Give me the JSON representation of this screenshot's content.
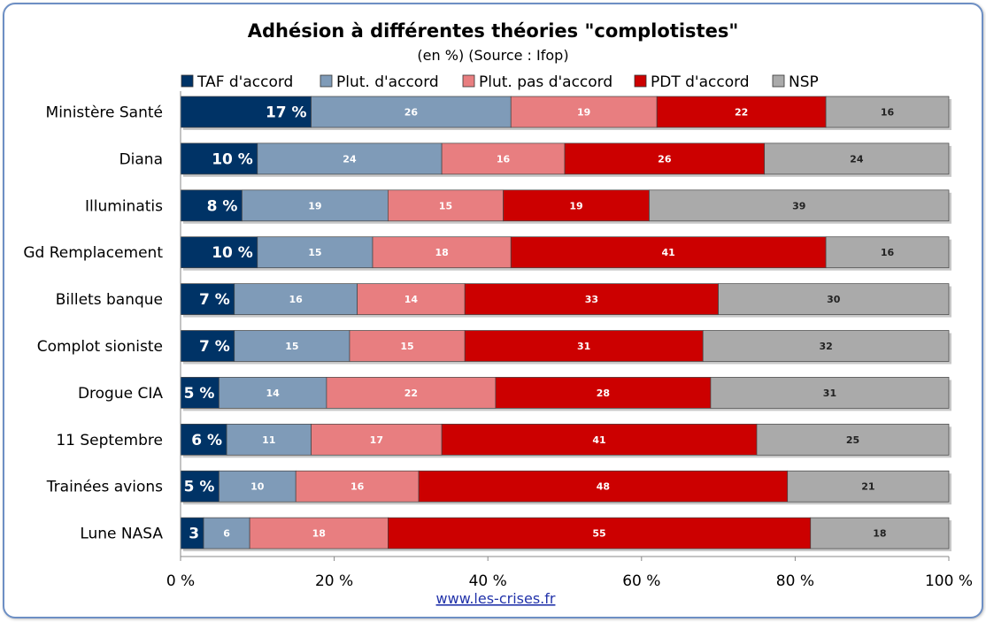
{
  "chart_data": {
    "type": "bar",
    "orientation": "horizontal",
    "stacked": true,
    "title": "Adhésion à différentes théories \"complotistes\"",
    "subtitle": "(en %) (Source : Ifop)",
    "categories": [
      "Ministère Santé",
      "Diana",
      "Illuminatis",
      "Gd Remplacement",
      "Billets banque",
      "Complot sioniste",
      "Drogue CIA",
      "11 Septembre",
      "Trainées avions",
      "Lune NASA"
    ],
    "series": [
      {
        "name": "TAF d'accord",
        "color": "#003366",
        "values": [
          17,
          10,
          8,
          10,
          7,
          7,
          5,
          6,
          5,
          3
        ],
        "labels": [
          "17 %",
          "10 %",
          "8 %",
          "10 %",
          "7 %",
          "7 %",
          "5 %",
          "6 %",
          "5 %",
          "3"
        ]
      },
      {
        "name": "Plut. d'accord",
        "color": "#7f9bb8",
        "values": [
          26,
          24,
          19,
          15,
          16,
          15,
          14,
          11,
          10,
          6
        ],
        "labels": [
          "26",
          "24",
          "19",
          "15",
          "16",
          "15",
          "14",
          "11",
          "10",
          "6"
        ]
      },
      {
        "name": "Plut. pas d'accord",
        "color": "#e87e80",
        "values": [
          19,
          16,
          15,
          18,
          14,
          15,
          22,
          17,
          16,
          18
        ],
        "labels": [
          "19",
          "16",
          "15",
          "18",
          "14",
          "15",
          "22",
          "17",
          "16",
          "18"
        ]
      },
      {
        "name": "PDT d'accord",
        "color": "#cc0000",
        "values": [
          22,
          26,
          19,
          41,
          33,
          31,
          28,
          41,
          48,
          55
        ],
        "labels": [
          "22",
          "26",
          "19",
          "41",
          "33",
          "31",
          "28",
          "41",
          "48",
          "55"
        ]
      },
      {
        "name": "NSP",
        "color": "#aaaaaa",
        "values": [
          16,
          24,
          39,
          16,
          30,
          32,
          31,
          25,
          21,
          18
        ],
        "labels": [
          "16",
          "24",
          "39",
          "16",
          "30",
          "32",
          "31",
          "25",
          "21",
          "18"
        ]
      }
    ],
    "xlim": [
      0,
      100
    ],
    "x_ticks": [
      "0 %",
      "20 %",
      "40 %",
      "60 %",
      "80 %",
      "100 %"
    ],
    "legend_position": "top",
    "grid": false
  },
  "footer": {
    "link_text": "www.les-crises.fr"
  }
}
